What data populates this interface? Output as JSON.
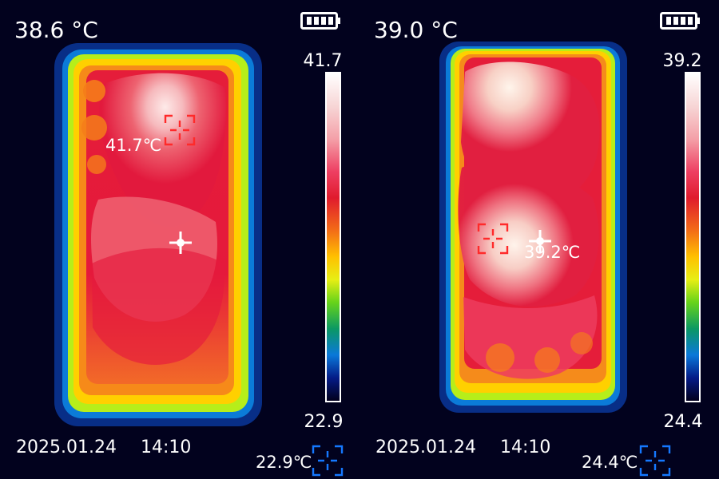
{
  "panels": [
    {
      "main_temp": "38.6 °C",
      "scale_max": "41.7",
      "scale_min": "22.9",
      "hot_spot_temp": "41.7℃",
      "cold_spot_temp": "22.9℃",
      "date": "2025.01.24",
      "time": "14:10",
      "battery_level": 1.0
    },
    {
      "main_temp": "39.0 °C",
      "scale_max": "39.2",
      "scale_min": "24.4",
      "hot_spot_temp": "39.2℃",
      "cold_spot_temp": "24.4℃",
      "date": "2025.01.24",
      "time": "14:10",
      "battery_level": 1.0
    }
  ],
  "colors": {
    "background": "#02021e",
    "cold": "#0055d8",
    "warm": "#e01b2d",
    "hot": "#ffffff",
    "marker_red": "#ff2a2a",
    "marker_blue": "#1578ff"
  }
}
